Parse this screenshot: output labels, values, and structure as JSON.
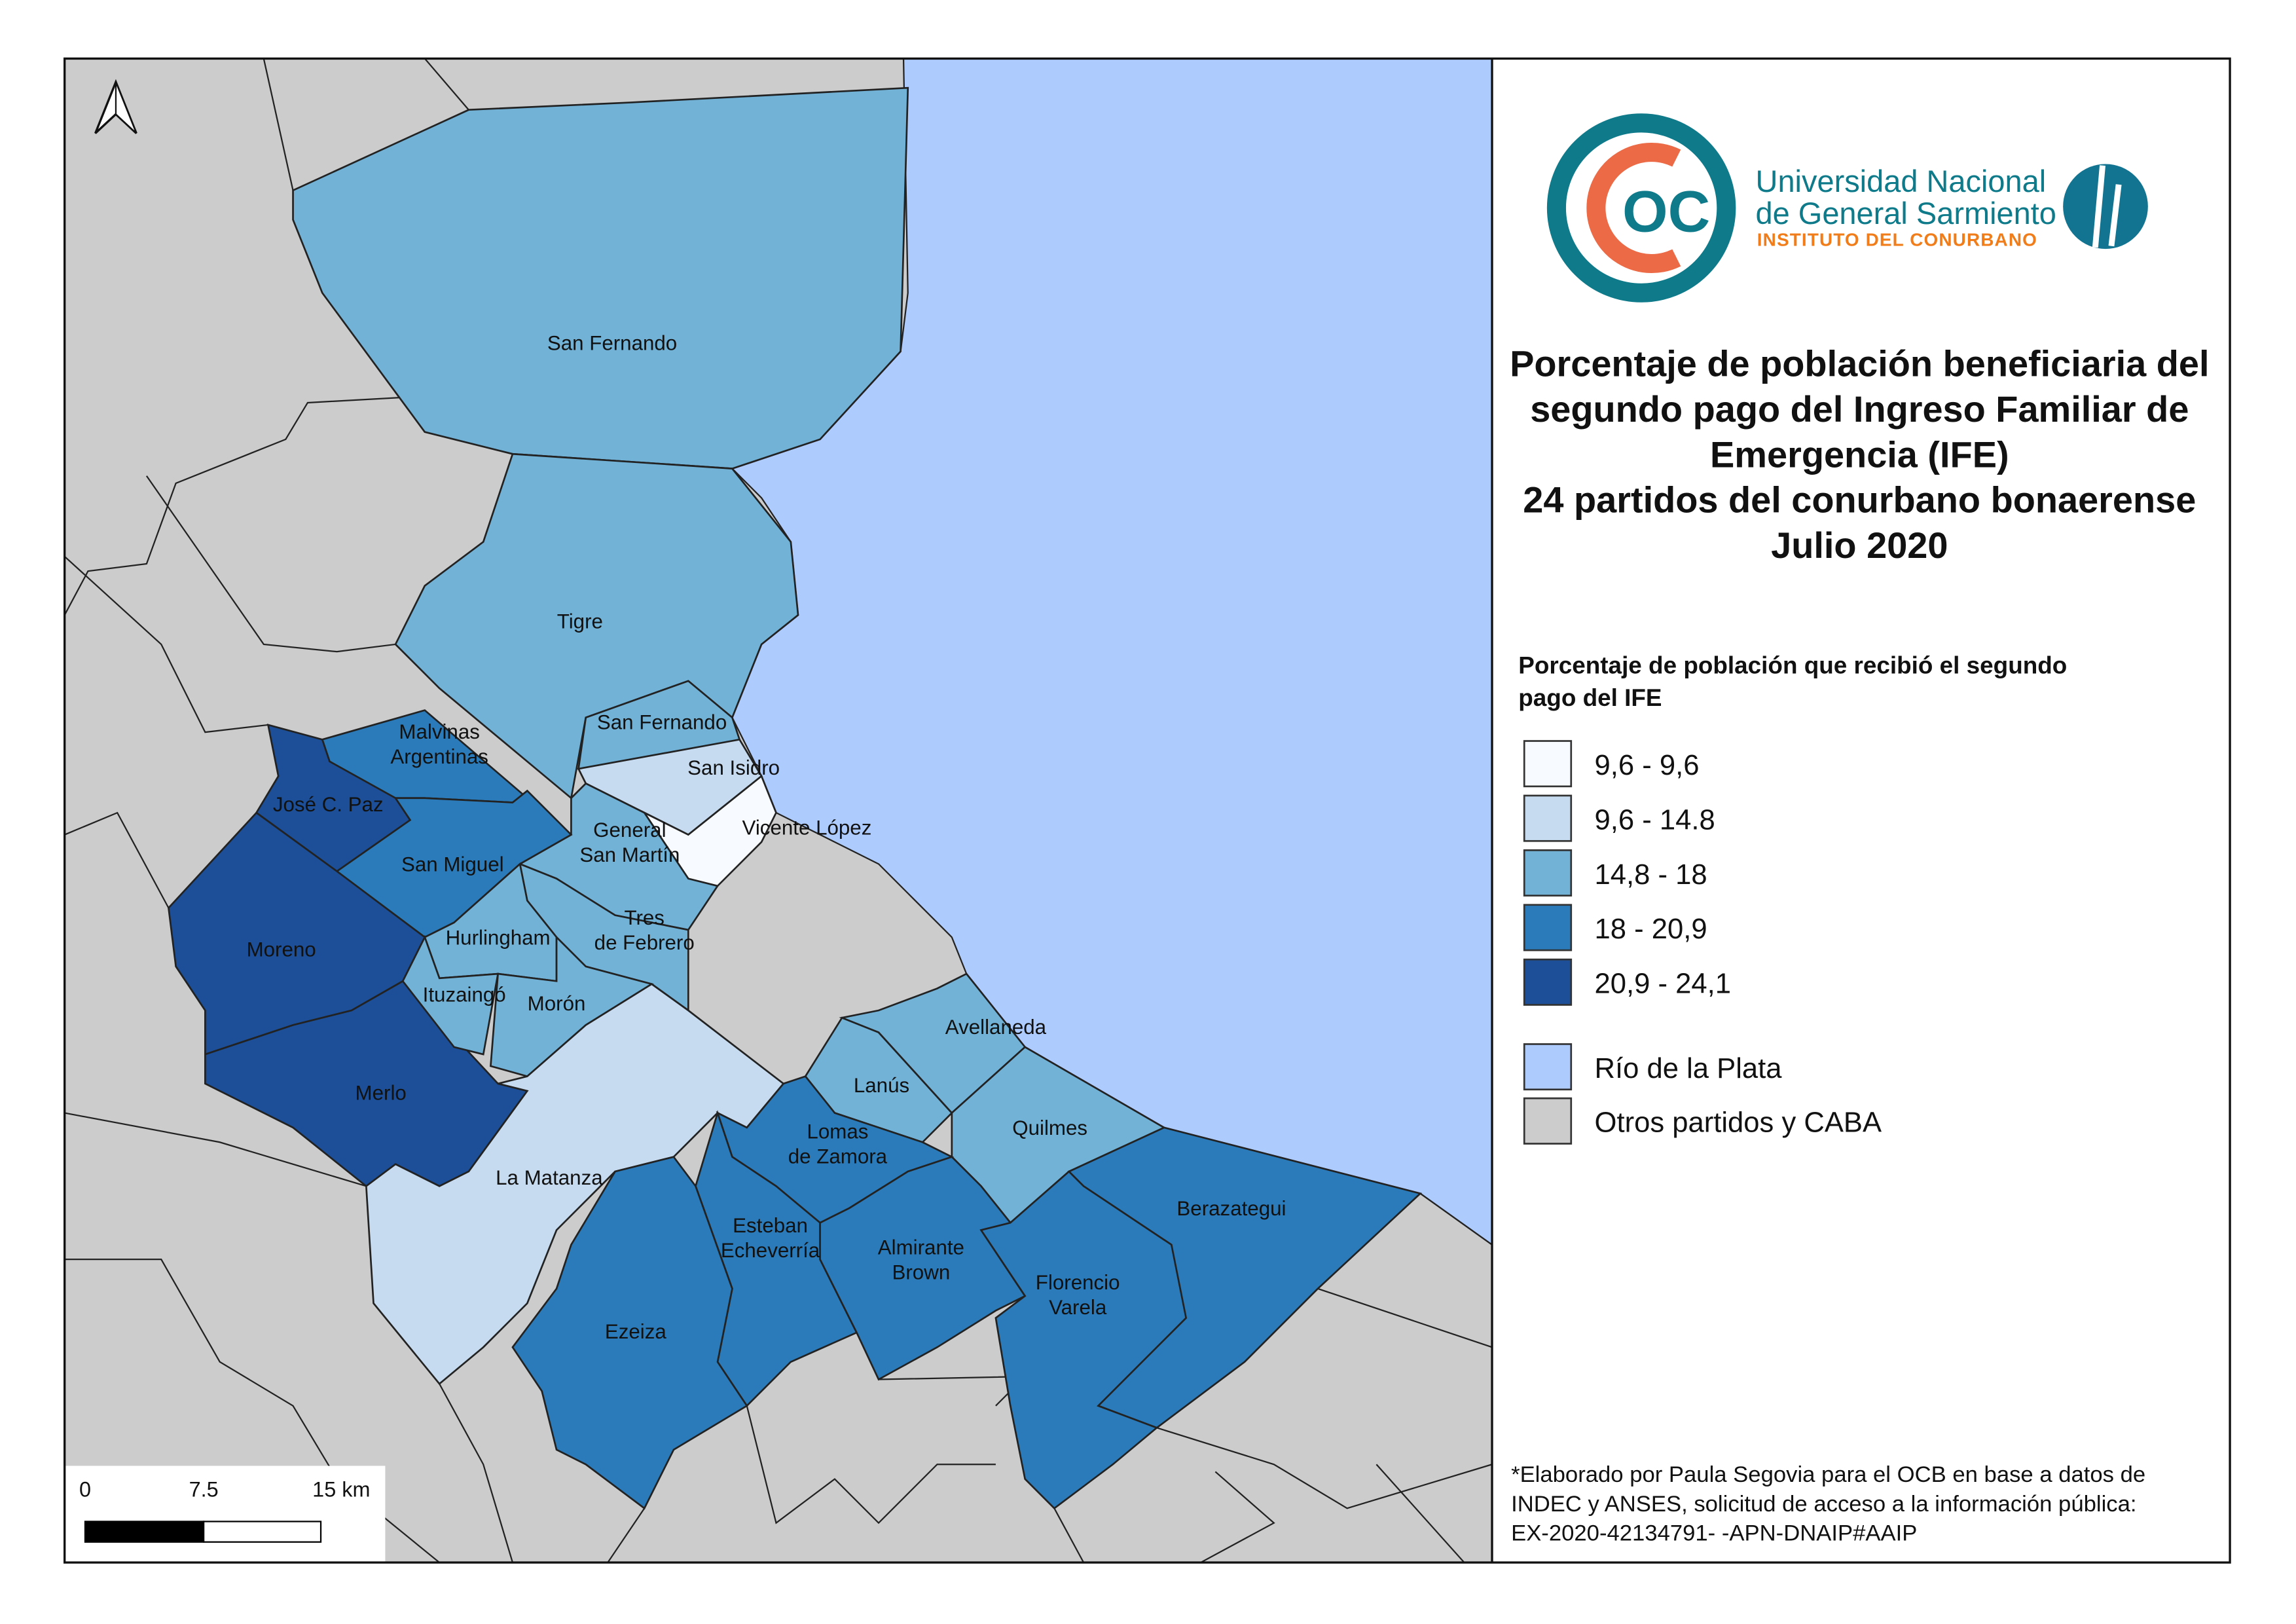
{
  "colors": {
    "classes": [
      "#f7fbff",
      "#c6dbef",
      "#72b2d7",
      "#2b7bba",
      "#1c4f97"
    ],
    "river": "#aecbfe",
    "other": "#cccccc",
    "logo_teal": "#0e7a8a",
    "logo_orange": "#ec6a46",
    "logo_text_orange": "#f07d1a"
  },
  "logo": {
    "mark": "OC",
    "line1": "Universidad Nacional",
    "line2": "de General Sarmiento",
    "line3": "INSTITUTO DEL CONURBANO"
  },
  "title": {
    "lines": [
      "Porcentaje de población beneficiaria del",
      "segundo pago del Ingreso Familiar de",
      "Emergencia (IFE)",
      "24 partidos del conurbano bonaerense",
      "Julio 2020"
    ]
  },
  "legend": {
    "title_lines": [
      "Porcentaje de población que recibió el segundo",
      "pago del IFE"
    ],
    "classes": [
      "9,6 - 9,6",
      "9,6 - 14.8",
      "14,8 - 18",
      "18 - 20,9",
      "20,9 - 24,1"
    ],
    "river": "Río de la Plata",
    "other": "Otros partidos y CABA"
  },
  "note": {
    "lines": [
      "*Elaborado por Paula Segovia para el OCB en base a datos de",
      "INDEC y ANSES, solicitud de acceso a la información pública:",
      "EX-2020-42134791- -APN-DNAIP#AAIP"
    ]
  },
  "scalebar": {
    "labels": [
      "0",
      "7.5",
      "15 km"
    ]
  },
  "north_arrow": "north-arrow-icon",
  "partidos": [
    {
      "name": [
        "San Fernando"
      ],
      "class": 2
    },
    {
      "name": [
        "Tigre"
      ],
      "class": 2
    },
    {
      "name": [
        "San Fernando"
      ],
      "class": 2
    },
    {
      "name": [
        "San Isidro"
      ],
      "class": 1
    },
    {
      "name": [
        "Vicente López"
      ],
      "class": 0
    },
    {
      "name": [
        "General",
        "San Martín"
      ],
      "class": 2
    },
    {
      "name": [
        "Tres",
        "de Febrero"
      ],
      "class": 2
    },
    {
      "name": [
        "Malvinas",
        "Argentinas"
      ],
      "class": 3
    },
    {
      "name": [
        "José C. Paz"
      ],
      "class": 4
    },
    {
      "name": [
        "San Miguel"
      ],
      "class": 3
    },
    {
      "name": [
        "Moreno"
      ],
      "class": 4
    },
    {
      "name": [
        "Merlo"
      ],
      "class": 4
    },
    {
      "name": [
        "Hurlingham"
      ],
      "class": 2
    },
    {
      "name": [
        "Ituzaingó"
      ],
      "class": 2
    },
    {
      "name": [
        "Morón"
      ],
      "class": 2
    },
    {
      "name": [
        "La Matanza"
      ],
      "class": 1
    },
    {
      "name": [
        "Lanús"
      ],
      "class": 2
    },
    {
      "name": [
        "Avellaneda"
      ],
      "class": 2
    },
    {
      "name": [
        "Quilmes"
      ],
      "class": 2
    },
    {
      "name": [
        "Lomas",
        "de Zamora"
      ],
      "class": 3
    },
    {
      "name": [
        "Esteban",
        "Echeverría"
      ],
      "class": 3
    },
    {
      "name": [
        "Almirante",
        "Brown"
      ],
      "class": 3
    },
    {
      "name": [
        "Berazategui"
      ],
      "class": 3
    },
    {
      "name": [
        "Florencio",
        "Varela"
      ],
      "class": 3
    },
    {
      "name": [
        "Ezeiza"
      ],
      "class": 3
    }
  ]
}
